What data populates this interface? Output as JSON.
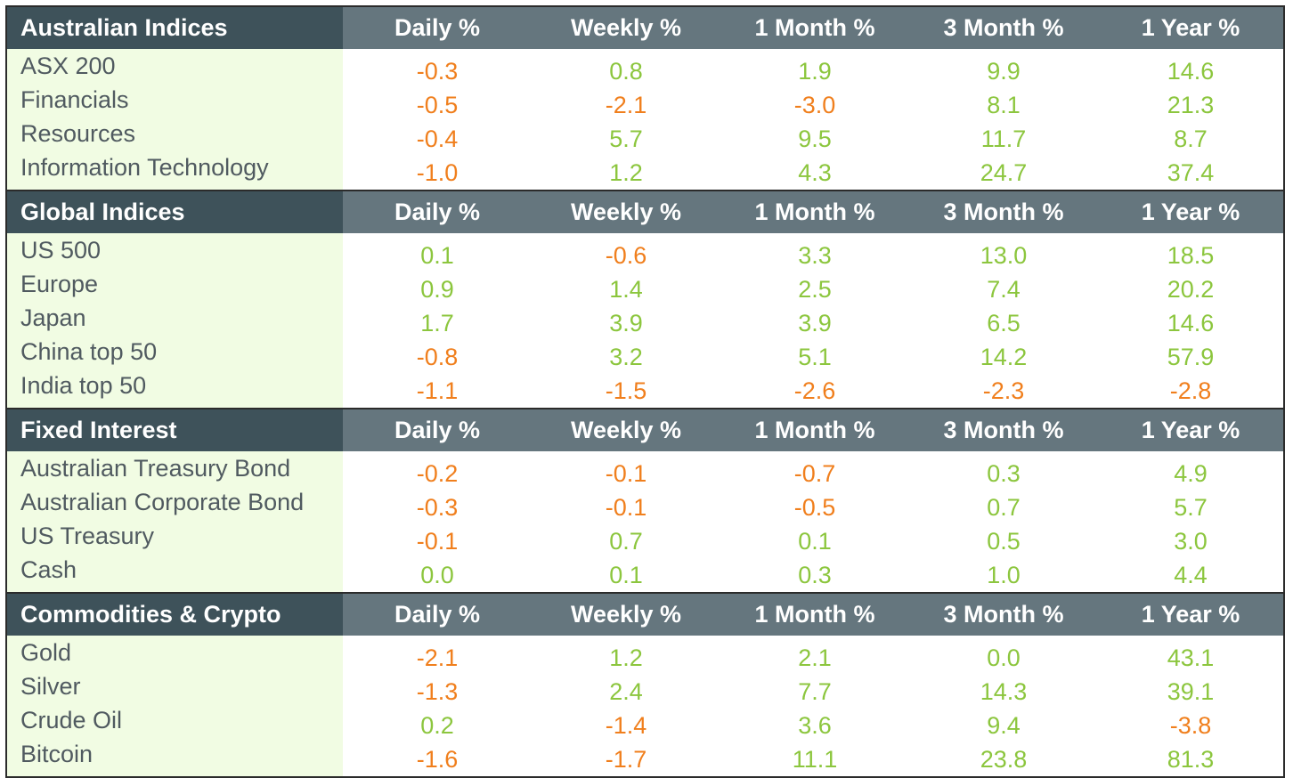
{
  "headers": [
    "Daily %",
    "Weekly %",
    "1 Month %",
    "3 Month %",
    "1 Year %"
  ],
  "colors": {
    "positive": "#8cc63e",
    "negative": "#f07f1d",
    "header_dark": "#3e525a",
    "header_light": "#65767e",
    "label_bg": "#f1fce3"
  },
  "sections": [
    {
      "title": "Australian Indices",
      "rows": [
        {
          "name": "ASX 200",
          "values": [
            "-0.3",
            "0.8",
            "1.9",
            "9.9",
            "14.6"
          ]
        },
        {
          "name": "Financials",
          "values": [
            "-0.5",
            "-2.1",
            "-3.0",
            "8.1",
            "21.3"
          ]
        },
        {
          "name": "Resources",
          "values": [
            "-0.4",
            "5.7",
            "9.5",
            "11.7",
            "8.7"
          ]
        },
        {
          "name": "Information Technology",
          "values": [
            "-1.0",
            "1.2",
            "4.3",
            "24.7",
            "37.4"
          ]
        }
      ]
    },
    {
      "title": "Global Indices",
      "rows": [
        {
          "name": "US 500",
          "values": [
            "0.1",
            "-0.6",
            "3.3",
            "13.0",
            "18.5"
          ]
        },
        {
          "name": "Europe",
          "values": [
            "0.9",
            "1.4",
            "2.5",
            "7.4",
            "20.2"
          ]
        },
        {
          "name": "Japan",
          "values": [
            "1.7",
            "3.9",
            "3.9",
            "6.5",
            "14.6"
          ]
        },
        {
          "name": "China top 50",
          "values": [
            "-0.8",
            "3.2",
            "5.1",
            "14.2",
            "57.9"
          ]
        },
        {
          "name": "India top 50",
          "values": [
            "-1.1",
            "-1.5",
            "-2.6",
            "-2.3",
            "-2.8"
          ]
        }
      ]
    },
    {
      "title": "Fixed Interest",
      "rows": [
        {
          "name": "Australian Treasury Bond",
          "values": [
            "-0.2",
            "-0.1",
            "-0.7",
            "0.3",
            "4.9"
          ]
        },
        {
          "name": "Australian Corporate Bond",
          "values": [
            "-0.3",
            "-0.1",
            "-0.5",
            "0.7",
            "5.7"
          ]
        },
        {
          "name": "US Treasury",
          "values": [
            "-0.1",
            "0.7",
            "0.1",
            "0.5",
            "3.0"
          ]
        },
        {
          "name": "Cash",
          "values": [
            "0.0",
            "0.1",
            "0.3",
            "1.0",
            "4.4"
          ]
        }
      ]
    },
    {
      "title": "Commodities & Crypto",
      "rows": [
        {
          "name": "Gold",
          "values": [
            "-2.1",
            "1.2",
            "2.1",
            "0.0",
            "43.1"
          ]
        },
        {
          "name": "Silver",
          "values": [
            "-1.3",
            "2.4",
            "7.7",
            "14.3",
            "39.1"
          ]
        },
        {
          "name": "Crude Oil",
          "values": [
            "0.2",
            "-1.4",
            "3.6",
            "9.4",
            "-3.8"
          ]
        },
        {
          "name": "Bitcoin",
          "values": [
            "-1.6",
            "-1.7",
            "11.1",
            "23.8",
            "81.3"
          ]
        }
      ]
    }
  ]
}
